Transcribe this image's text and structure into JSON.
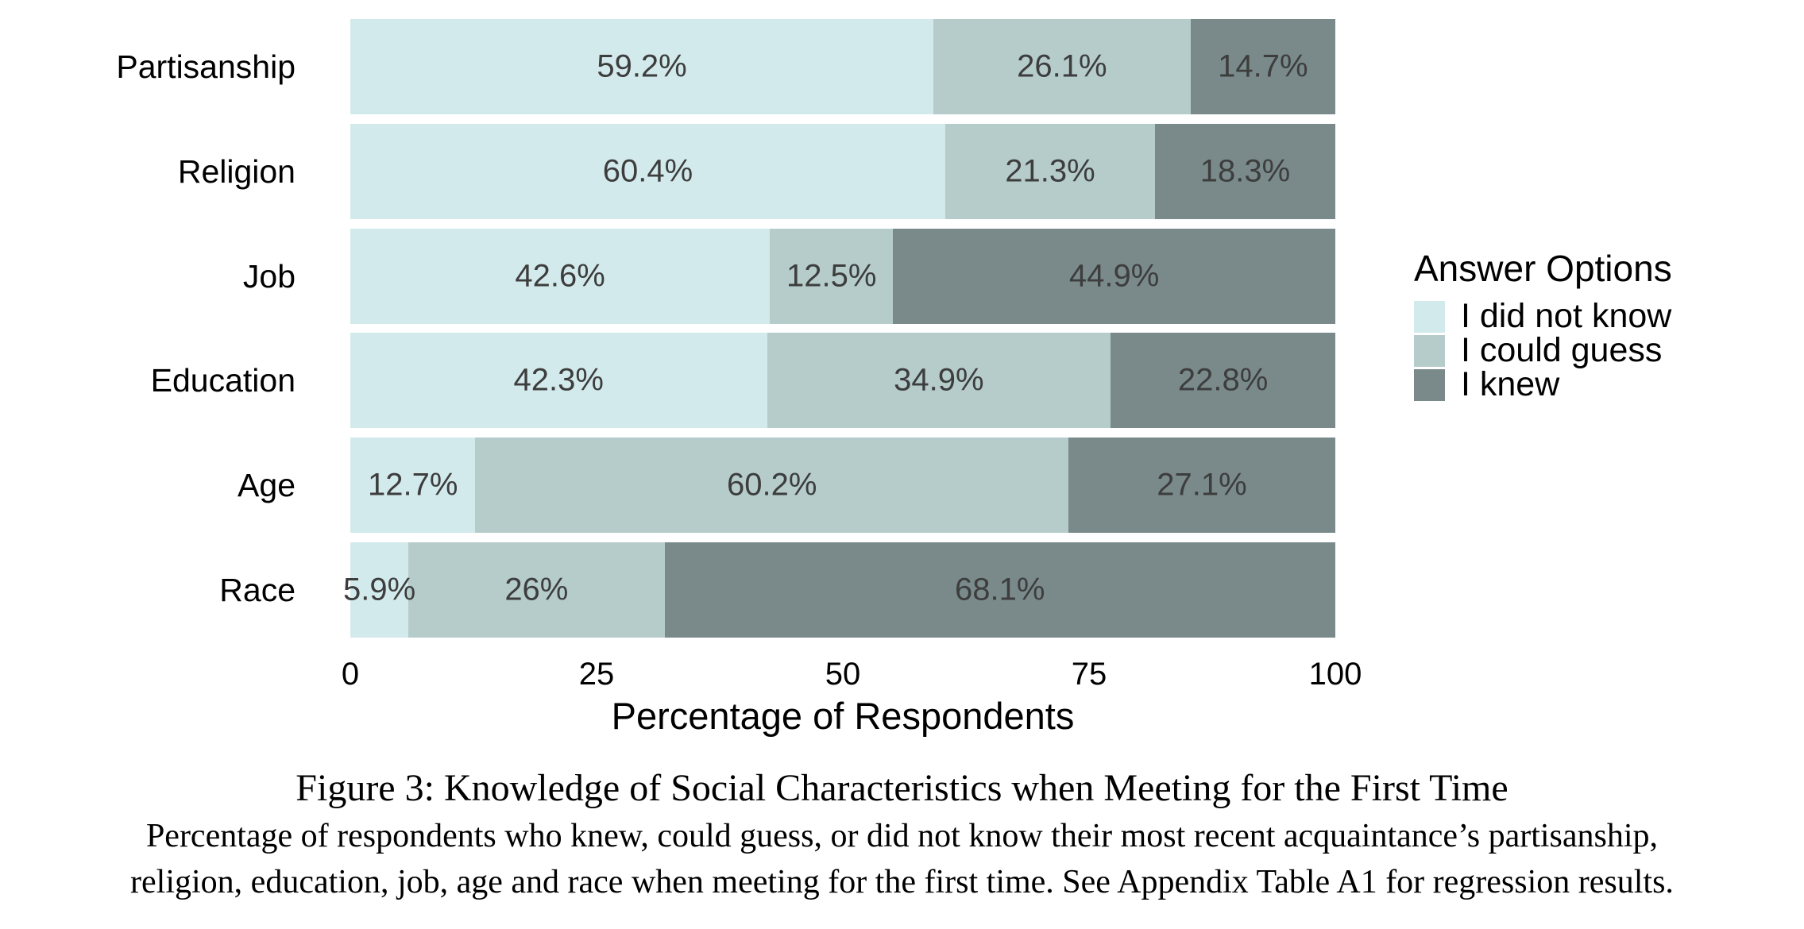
{
  "chart_data": {
    "type": "bar",
    "orientation": "horizontal-stacked",
    "title": "",
    "xlabel": "Percentage of Respondents",
    "ylabel": "",
    "xlim": [
      0,
      100
    ],
    "x_ticks": [
      "0",
      "25",
      "50",
      "75",
      "100"
    ],
    "grid": false,
    "legend_position": "right",
    "legend_title": "Answer Options",
    "categories": [
      "Partisanship",
      "Religion",
      "Job",
      "Education",
      "Age",
      "Race"
    ],
    "series": [
      {
        "name": "I did not know",
        "color": "#d3eaec",
        "values": [
          59.2,
          60.4,
          42.6,
          42.3,
          12.7,
          5.9
        ]
      },
      {
        "name": "I could guess",
        "color": "#b5cccb",
        "values": [
          26.1,
          21.3,
          12.5,
          34.9,
          60.2,
          26
        ]
      },
      {
        "name": "I knew",
        "color": "#7a8a8b",
        "values": [
          14.7,
          18.3,
          44.9,
          22.8,
          27.1,
          68.1
        ]
      }
    ],
    "value_labels": [
      [
        "59.2%",
        "26.1%",
        "14.7%"
      ],
      [
        "60.4%",
        "21.3%",
        "18.3%"
      ],
      [
        "42.6%",
        "12.5%",
        "44.9%"
      ],
      [
        "42.3%",
        "34.9%",
        "22.8%"
      ],
      [
        "12.7%",
        "60.2%",
        "27.1%"
      ],
      [
        "5.9%",
        "26%",
        "68.1%"
      ]
    ]
  },
  "legend": {
    "title": "Answer Options"
  },
  "axis": {
    "x_title": "Percentage of Respondents"
  },
  "caption": {
    "title": "Figure 3: Knowledge of Social Characteristics when Meeting for the First Time",
    "line1": "Percentage of respondents who knew, could guess, or did not know their most recent acquaintance’s partisanship,",
    "line2": "religion, education, job, age and race when meeting for the first time. See Appendix Table A1 for regression results."
  },
  "colors": {
    "did_not_know": "#d3eaec",
    "could_guess": "#b5cccb",
    "knew": "#7a8a8b",
    "bar_label_text": "#3d3d3d",
    "text": "#000000",
    "background": "#ffffff"
  }
}
